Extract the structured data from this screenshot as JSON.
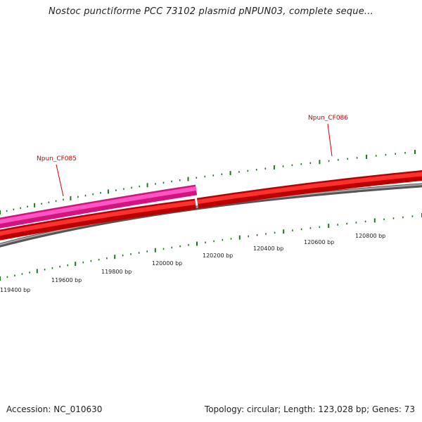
{
  "header": {
    "title": "Nostoc punctiforme PCC 73102 plasmid pNPUN03, complete seque..."
  },
  "footer": {
    "accession": "Accession: NC_010630",
    "summary": "Topology: circular; Length: 123,028 bp; Genes: 73"
  },
  "colors": {
    "forward_gene": "#ee0000",
    "reverse_gene": "#ee22aa",
    "backbone": "#808080",
    "tick": "#1a7a1a",
    "gene_label": "#cc0000"
  },
  "genes": [
    {
      "name": "Npun_CF085",
      "strand": "reverse"
    },
    {
      "name": "Npun_CF086",
      "strand": "forward"
    }
  ],
  "ruler": {
    "labels": [
      "119400 bp",
      "119600 bp",
      "119800 bp",
      "120000 bp",
      "120200 bp",
      "120400 bp",
      "120600 bp",
      "120800 bp"
    ]
  }
}
